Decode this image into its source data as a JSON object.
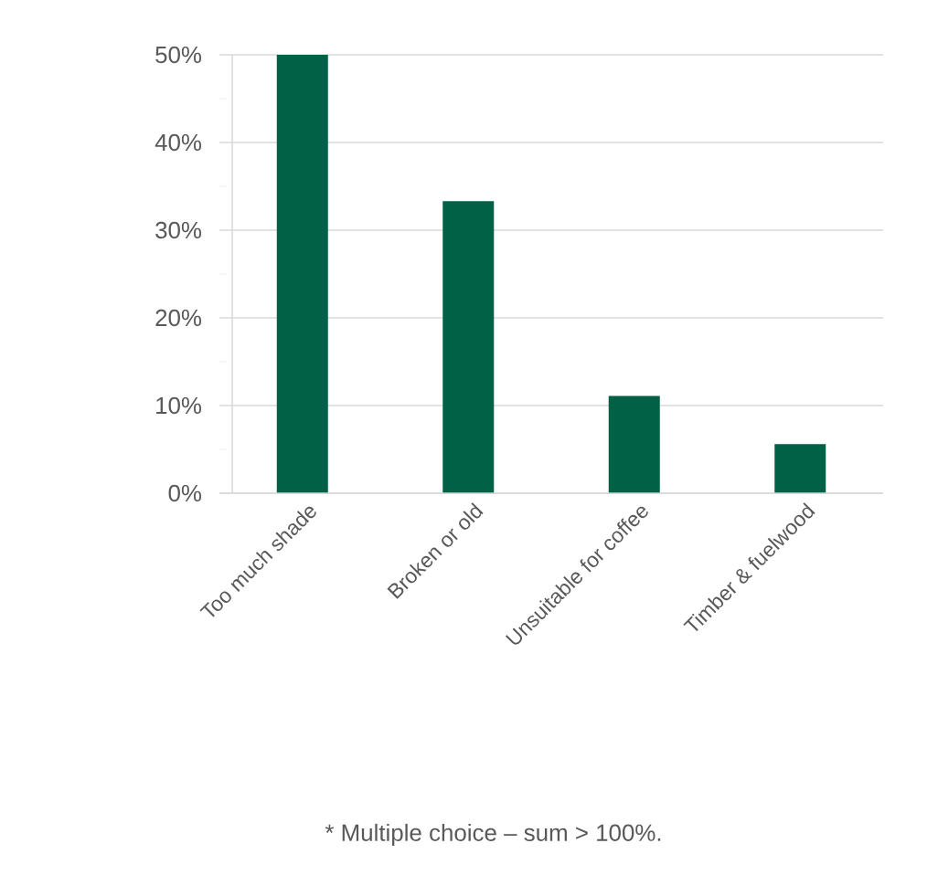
{
  "chart_data": {
    "type": "bar",
    "categories": [
      "Too much shade",
      "Broken or old",
      "Unsuitable for coffee",
      "Timber & fuelwood"
    ],
    "values": [
      50,
      33.3,
      11.1,
      5.6
    ],
    "color": "#006146",
    "ylim": [
      0,
      50
    ],
    "yticks": [
      {
        "value": 0,
        "label": "0%"
      },
      {
        "value": 5,
        "label": null
      },
      {
        "value": 10,
        "label": "10%"
      },
      {
        "value": 15,
        "label": null
      },
      {
        "value": 20,
        "label": "20%"
      },
      {
        "value": 25,
        "label": null
      },
      {
        "value": 30,
        "label": "30%"
      },
      {
        "value": 35,
        "label": null
      },
      {
        "value": 40,
        "label": "40%"
      },
      {
        "value": 45,
        "label": null
      },
      {
        "value": 50,
        "label": "50%"
      }
    ],
    "grid": "y",
    "annotations": [
      "* Multiple choice – sum > 100%."
    ]
  }
}
